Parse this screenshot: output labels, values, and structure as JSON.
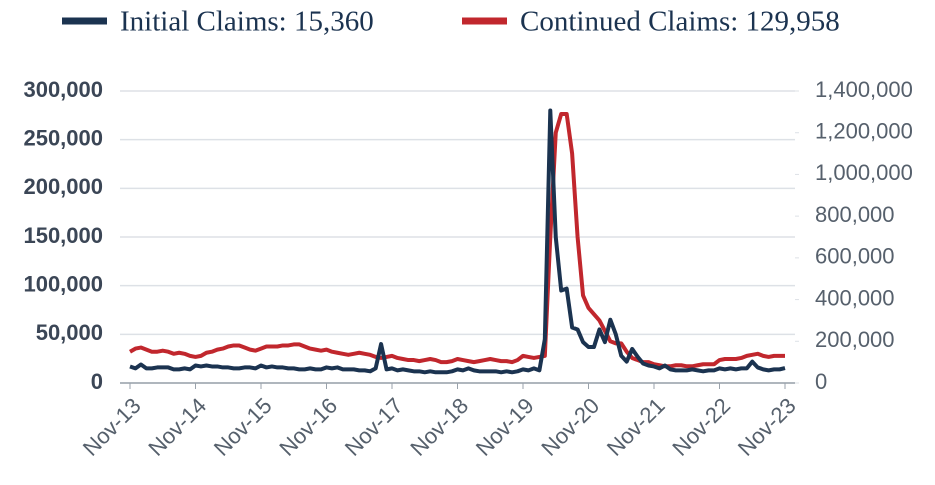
{
  "chart_data": {
    "type": "line",
    "categories": [
      "Nov-13",
      null,
      null,
      null,
      null,
      null,
      null,
      null,
      null,
      null,
      null,
      null,
      "Nov-14",
      null,
      null,
      null,
      null,
      null,
      null,
      null,
      null,
      null,
      null,
      null,
      "Nov-15",
      null,
      null,
      null,
      null,
      null,
      null,
      null,
      null,
      null,
      null,
      null,
      "Nov-16",
      null,
      null,
      null,
      null,
      null,
      null,
      null,
      null,
      null,
      null,
      null,
      "Nov-17",
      null,
      null,
      null,
      null,
      null,
      null,
      null,
      null,
      null,
      null,
      null,
      "Nov-18",
      null,
      null,
      null,
      null,
      null,
      null,
      null,
      null,
      null,
      null,
      null,
      "Nov-19",
      null,
      null,
      null,
      null,
      null,
      null,
      null,
      null,
      null,
      null,
      null,
      "Nov-20",
      null,
      null,
      null,
      null,
      null,
      null,
      null,
      null,
      null,
      null,
      null,
      "Nov-21",
      null,
      null,
      null,
      null,
      null,
      null,
      null,
      null,
      null,
      null,
      null,
      "Nov-22",
      null,
      null,
      null,
      null,
      null,
      null,
      null,
      null,
      null,
      null,
      null,
      "Nov-23"
    ],
    "series": [
      {
        "name": "Initial Claims: 15,360",
        "color": "#1b3350",
        "axis": "y",
        "values": [
          17000,
          15000,
          19000,
          15000,
          15000,
          16000,
          16000,
          16000,
          14000,
          14000,
          15000,
          14000,
          18000,
          17000,
          18000,
          17000,
          17000,
          16000,
          16000,
          15000,
          15000,
          16000,
          16000,
          15000,
          18000,
          16000,
          17000,
          16000,
          16000,
          15000,
          15000,
          14000,
          14000,
          15000,
          14000,
          14000,
          16000,
          15000,
          16000,
          14000,
          14000,
          14000,
          13000,
          13000,
          12000,
          15000,
          40000,
          14000,
          15000,
          13000,
          14000,
          13000,
          12000,
          12000,
          11000,
          12000,
          11000,
          11000,
          11000,
          12000,
          14000,
          13000,
          15000,
          13000,
          12000,
          12000,
          12000,
          12000,
          11000,
          12000,
          11000,
          12000,
          14000,
          13000,
          15000,
          13000,
          45000,
          280000,
          150000,
          95000,
          97000,
          57000,
          55000,
          42000,
          37000,
          37000,
          55000,
          42000,
          65000,
          50000,
          28000,
          22000,
          35000,
          27000,
          20000,
          18000,
          17000,
          15000,
          18000,
          14000,
          13000,
          13000,
          13000,
          14000,
          13000,
          12000,
          13000,
          13000,
          15000,
          14000,
          15000,
          14000,
          15000,
          15000,
          22000,
          16000,
          14000,
          13000,
          14000,
          14000,
          15360
        ]
      },
      {
        "name": "Continued Claims: 129,958",
        "color": "#c1272d",
        "axis": "y2",
        "values": [
          150000,
          165000,
          170000,
          160000,
          150000,
          150000,
          155000,
          150000,
          140000,
          145000,
          140000,
          130000,
          125000,
          130000,
          145000,
          150000,
          160000,
          165000,
          175000,
          180000,
          180000,
          170000,
          160000,
          155000,
          165000,
          175000,
          175000,
          175000,
          180000,
          180000,
          185000,
          185000,
          175000,
          165000,
          160000,
          155000,
          160000,
          150000,
          145000,
          140000,
          135000,
          140000,
          145000,
          140000,
          135000,
          125000,
          120000,
          125000,
          130000,
          120000,
          115000,
          110000,
          110000,
          105000,
          110000,
          115000,
          110000,
          100000,
          100000,
          105000,
          115000,
          110000,
          105000,
          100000,
          105000,
          110000,
          115000,
          110000,
          105000,
          105000,
          100000,
          110000,
          130000,
          125000,
          120000,
          125000,
          130000,
          700000,
          1200000,
          1290000,
          1290000,
          1100000,
          700000,
          420000,
          360000,
          330000,
          300000,
          250000,
          200000,
          190000,
          190000,
          150000,
          120000,
          110000,
          100000,
          100000,
          90000,
          85000,
          80000,
          80000,
          85000,
          85000,
          80000,
          80000,
          85000,
          90000,
          90000,
          90000,
          110000,
          115000,
          115000,
          115000,
          120000,
          130000,
          135000,
          140000,
          130000,
          125000,
          130000,
          130000,
          129958
        ]
      }
    ],
    "ylim": [
      0,
      300000
    ],
    "yticks": [
      0,
      {
        "value": 50000,
        "label": "50,000"
      },
      {
        "value": 100000,
        "label": "100,000"
      },
      {
        "value": 150000,
        "label": "150,000"
      },
      {
        "value": 200000,
        "label": "200,000"
      },
      {
        "value": 250000,
        "label": "250,000"
      },
      {
        "value": 300000,
        "label": "300,000"
      }
    ],
    "y2lim": [
      0,
      1400000
    ],
    "y2ticks": [
      0,
      {
        "value": 200000,
        "label": "200,000"
      },
      {
        "value": 400000,
        "label": "400,000"
      },
      {
        "value": 600000,
        "label": "600,000"
      },
      {
        "value": 800000,
        "label": "800,000"
      },
      {
        "value": 1000000,
        "label": "1,000,000"
      },
      {
        "value": 1200000,
        "label": "1,200,000"
      },
      {
        "value": 1400000,
        "label": "1,400,000"
      }
    ],
    "grid": true
  }
}
